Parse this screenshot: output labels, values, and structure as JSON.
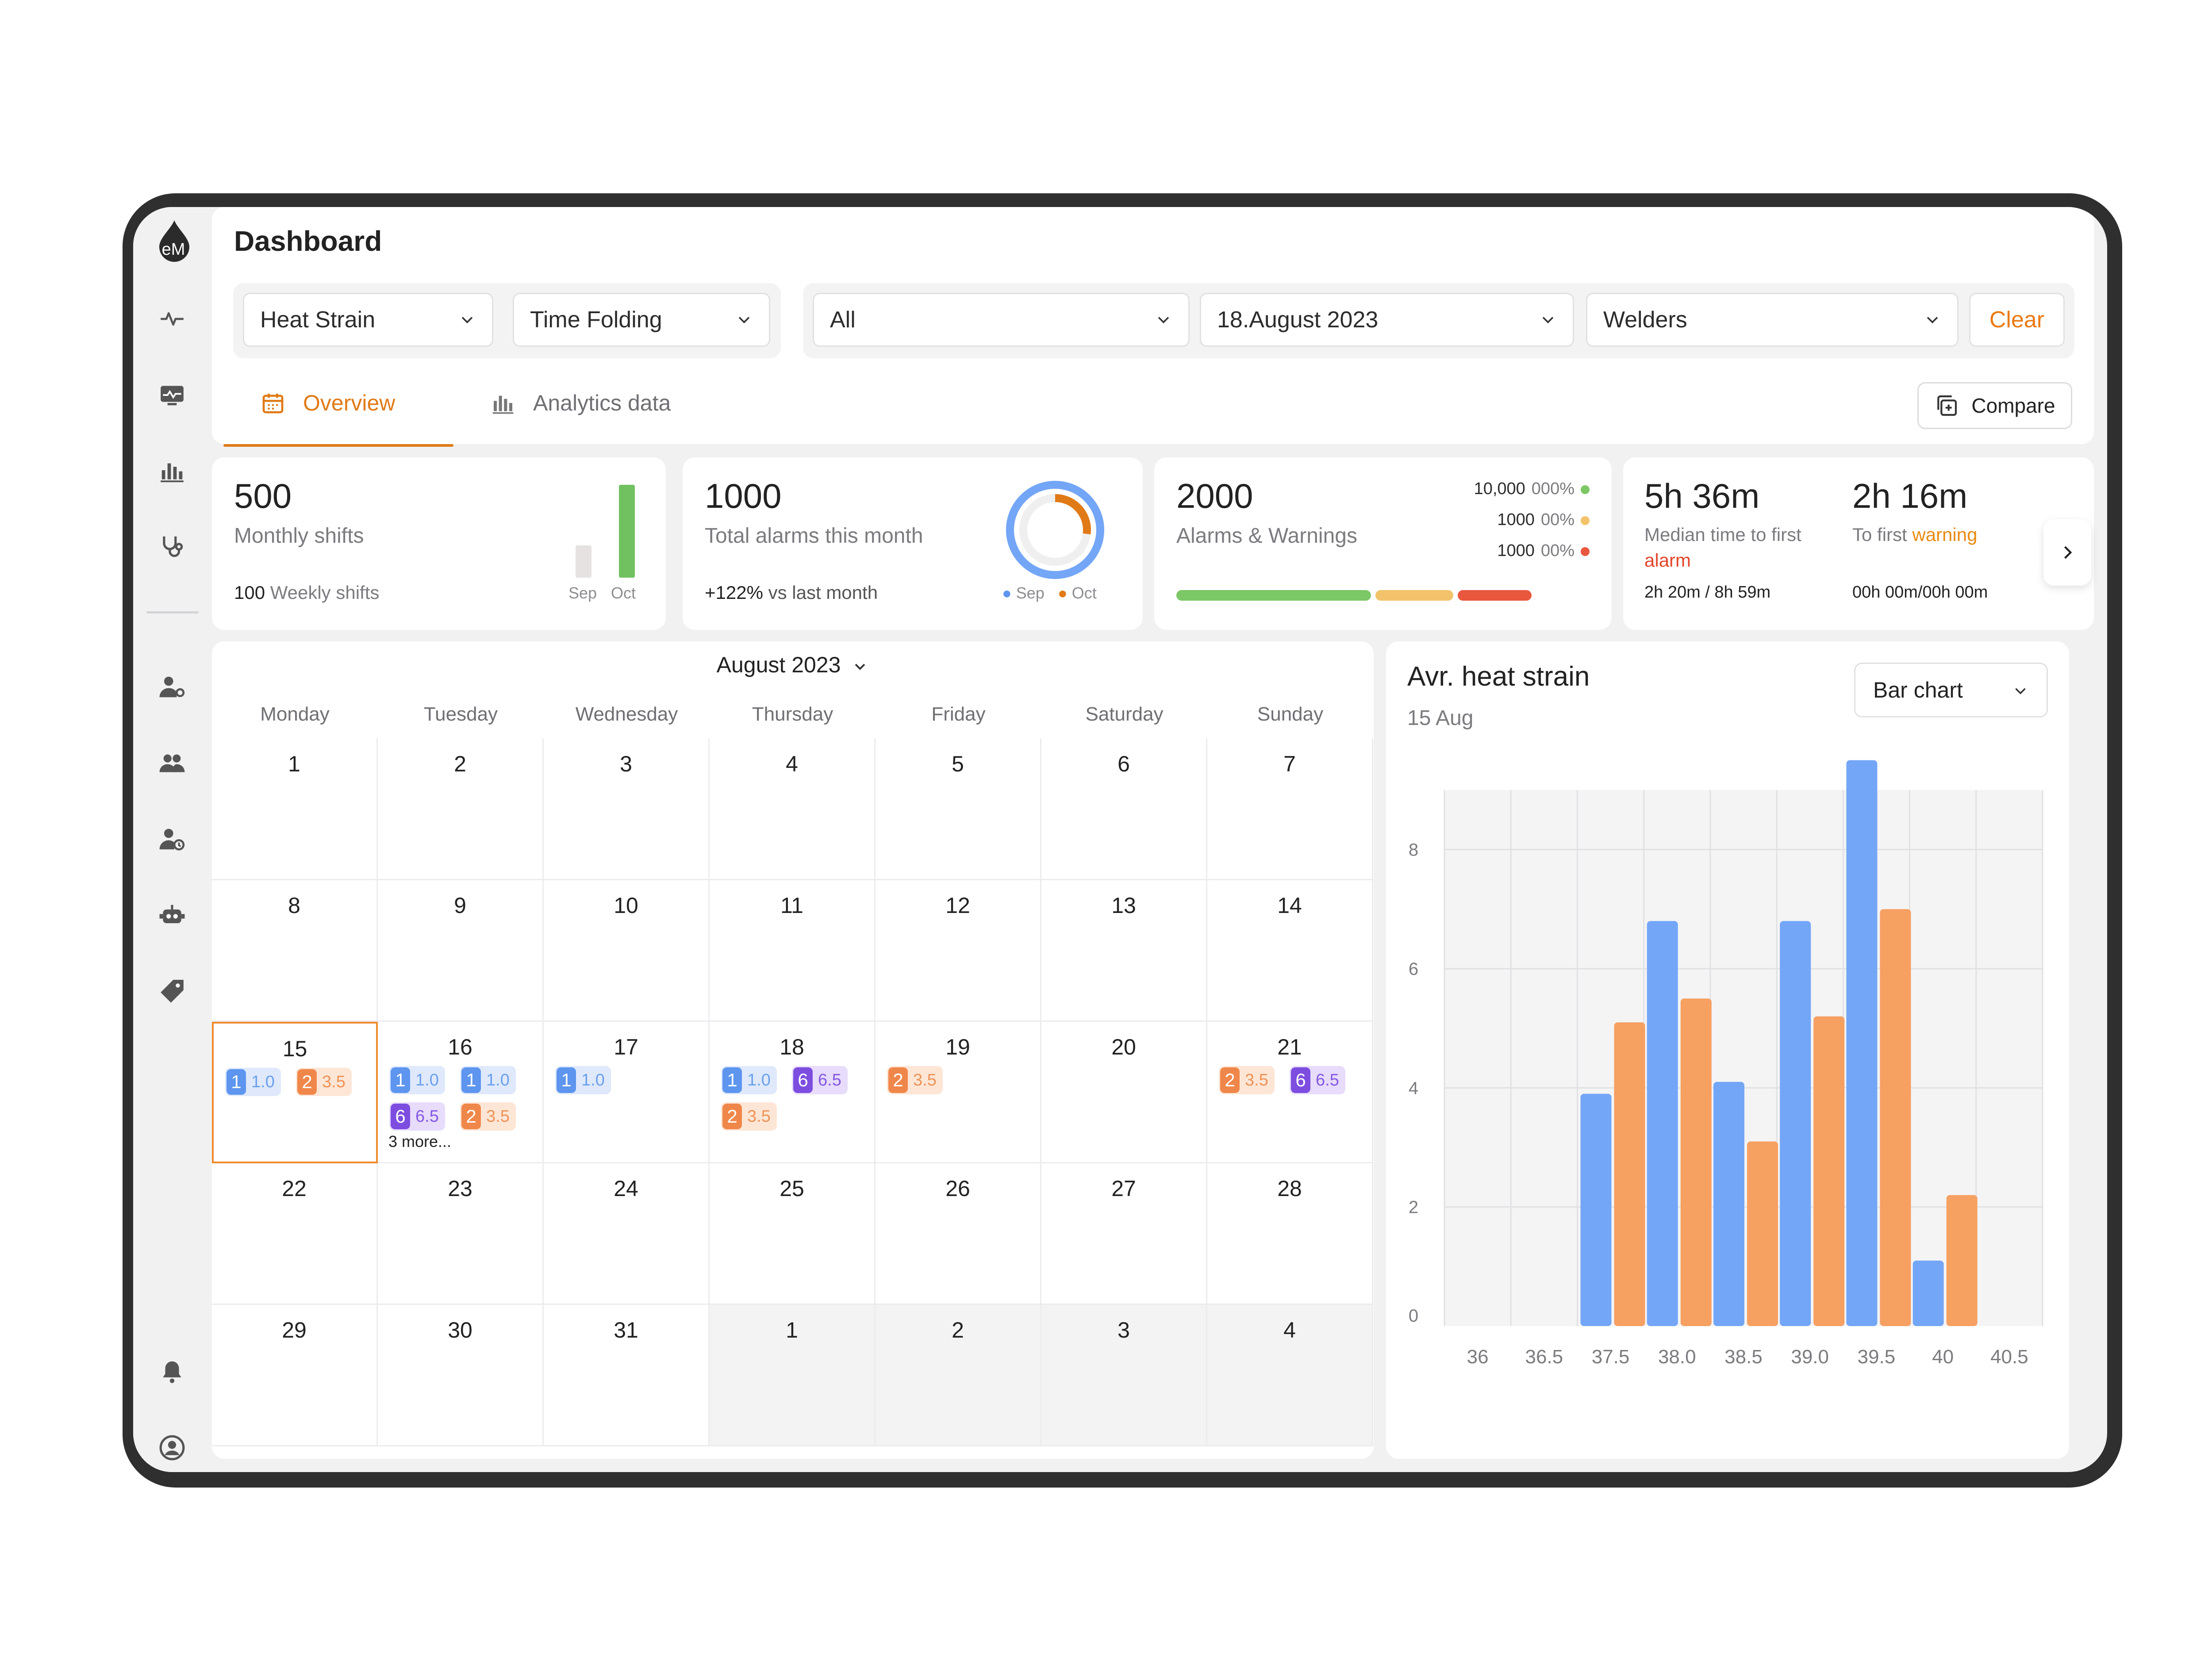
{
  "app": {
    "title": "Dashboard",
    "logo_text": "eM"
  },
  "colors": {
    "accent": "#e07a16",
    "blue": "#74a6f7",
    "orange": "#f6a062",
    "purple": "#7d4de0",
    "green": "#7cc766",
    "yellow": "#f2c36a",
    "red": "#e9573f"
  },
  "sidebar": {
    "top_icons": [
      "activity-icon",
      "monitor-icon",
      "bar-chart-icon",
      "stethoscope-icon"
    ],
    "bottom_icons": [
      "user-settings-icon",
      "group-icon",
      "user-clock-icon",
      "robot-icon",
      "tag-icon"
    ],
    "footer_icons": [
      "bell-icon",
      "user-profile-icon"
    ]
  },
  "filters": {
    "metric": "Heat Strain",
    "mode": "Time Folding",
    "scope": "All",
    "date": "18.August 2023",
    "group": "Welders",
    "clear_label": "Clear"
  },
  "tabs": [
    {
      "label": "Overview",
      "active": true
    },
    {
      "label": "Analytics data",
      "active": false
    }
  ],
  "compare_label": "Compare",
  "stats": {
    "shifts": {
      "value": "500",
      "label": "Monthly shifts",
      "weekly_value": "100",
      "weekly_label": "Weekly shifts",
      "bars": [
        {
          "label": "Sep",
          "value": 35
        },
        {
          "label": "Oct",
          "value": 100
        }
      ]
    },
    "alarms": {
      "value": "1000",
      "label": "Total alarms this month",
      "change": "+122%",
      "change_label": "vs last month",
      "legend": [
        "Sep",
        "Oct"
      ],
      "ring_fraction": 0.27
    },
    "warnings": {
      "value": "2000",
      "label": "Alarms & Warnings",
      "rows": [
        {
          "count": "10,000",
          "pct": "000%",
          "color": "#7cc766"
        },
        {
          "count": "1000",
          "pct": "00%",
          "color": "#f2c36a"
        },
        {
          "count": "1000",
          "pct": "00%",
          "color": "#e9573f"
        }
      ],
      "bar": [
        0.5,
        0.2,
        0.19
      ]
    },
    "timing": {
      "median_value": "5h 36m",
      "median_label_1": "Median time to first",
      "median_label_2": "alarm",
      "median_foot": "2h 20m / 8h 59m",
      "first_value": "2h 16m",
      "first_label_1": "To first",
      "first_label_2": "warning",
      "first_foot": "00h 00m/00h 00m"
    }
  },
  "calendar": {
    "title": "August 2023",
    "weekdays": [
      "Monday",
      "Tuesday",
      "Wednesday",
      "Thursday",
      "Friday",
      "Saturday",
      "Sunday"
    ],
    "weeks": [
      [
        "1",
        "2",
        "3",
        "4",
        "5",
        "6",
        "7"
      ],
      [
        "8",
        "9",
        "10",
        "11",
        "12",
        "13",
        "14"
      ],
      [
        "15",
        "16",
        "17",
        "18",
        "19",
        "20",
        "21"
      ],
      [
        "22",
        "23",
        "24",
        "25",
        "26",
        "27",
        "28"
      ],
      [
        "29",
        "30",
        "31",
        "1",
        "2",
        "3",
        "4"
      ]
    ],
    "today": "15",
    "events": {
      "15": [
        [
          {
            "n": "1",
            "v": "1.0",
            "c": "b1"
          },
          {
            "n": "2",
            "v": "3.5",
            "c": "b2"
          }
        ]
      ],
      "16": [
        [
          {
            "n": "1",
            "v": "1.0",
            "c": "b1"
          },
          {
            "n": "1",
            "v": "1.0",
            "c": "b1"
          }
        ],
        [
          {
            "n": "6",
            "v": "6.5",
            "c": "b6"
          },
          {
            "n": "2",
            "v": "3.5",
            "c": "b2"
          }
        ]
      ],
      "17": [
        [
          {
            "n": "1",
            "v": "1.0",
            "c": "b1"
          }
        ]
      ],
      "18": [
        [
          {
            "n": "1",
            "v": "1.0",
            "c": "b1"
          },
          {
            "n": "6",
            "v": "6.5",
            "c": "b6"
          }
        ],
        [
          {
            "n": "2",
            "v": "3.5",
            "c": "b2"
          }
        ]
      ],
      "19": [
        [
          {
            "n": "2",
            "v": "3.5",
            "c": "b2"
          }
        ]
      ],
      "21": [
        [
          {
            "n": "2",
            "v": "3.5",
            "c": "b2"
          },
          {
            "n": "6",
            "v": "6.5",
            "c": "b6"
          }
        ]
      ]
    },
    "more_16": "3 more..."
  },
  "chart_panel": {
    "title": "Avr. heat strain",
    "subtitle": "15 Aug",
    "type_selector": "Bar chart"
  },
  "chart_data": {
    "type": "bar",
    "categories": [
      "36",
      "36.5",
      "37.5",
      "38.0",
      "38.5",
      "39.0",
      "39.5",
      "40",
      "40.5"
    ],
    "ylim": [
      0,
      9
    ],
    "yticks": [
      "0",
      "2",
      "4",
      "6",
      "8"
    ],
    "grid": true,
    "bars": [
      {
        "x": 37.5,
        "blue": 3.9,
        "orange": 5.1
      },
      {
        "x": 38.0,
        "blue": 6.8,
        "orange": 5.5
      },
      {
        "x": 38.5,
        "blue": 4.1,
        "orange": 3.1
      },
      {
        "x": 39.0,
        "blue": 6.8,
        "orange": 5.2
      },
      {
        "x": 39.5,
        "blue": 9.5,
        "orange": 7.0
      },
      {
        "x": 40.0,
        "blue": 1.1,
        "orange": 2.2
      }
    ]
  }
}
